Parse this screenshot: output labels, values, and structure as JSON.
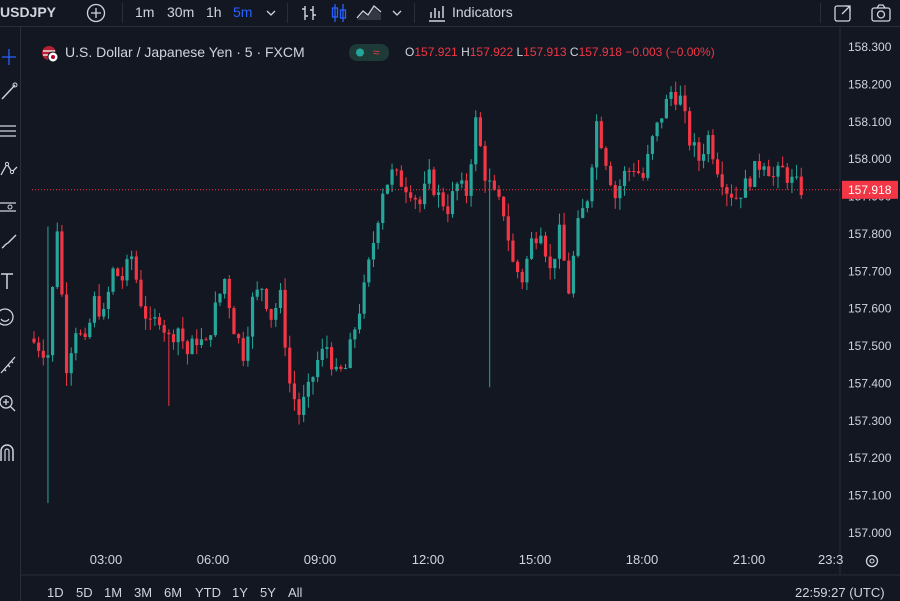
{
  "toolbar": {
    "symbol": "USDJPY",
    "intervals": [
      "1m",
      "30m",
      "1h",
      "5m"
    ],
    "active_interval": "5m",
    "indicators_label": "Indicators"
  },
  "legend": {
    "title": "U.S. Dollar / Japanese Yen · 5 · FXCM",
    "open_label": "O",
    "open": "157.921",
    "high_label": "H",
    "high": "157.922",
    "low_label": "L",
    "low": "157.913",
    "close_label": "C",
    "close": "157.918",
    "change": "−0.003 (−0.00%)"
  },
  "range_buttons": [
    "1D",
    "5D",
    "1M",
    "3M",
    "6M",
    "YTD",
    "1Y",
    "5Y",
    "All"
  ],
  "clock": "22:59:27 (UTC)",
  "colors": {
    "up": "#26a69a",
    "down": "#f23645",
    "price_line": "#f23645",
    "background": "#131722"
  },
  "chart_data": {
    "type": "candlestick",
    "ylim": [
      156.98,
      158.33
    ],
    "yticks": [
      "158.300",
      "158.200",
      "158.100",
      "158.000",
      "157.900",
      "157.800",
      "157.700",
      "157.600",
      "157.500",
      "157.400",
      "157.300",
      "157.200",
      "157.100",
      "157.000"
    ],
    "xticks": [
      "03:00",
      "06:00",
      "09:00",
      "12:00",
      "15:00",
      "18:00",
      "21:00",
      "23:3"
    ],
    "last_price": "157.918",
    "close_path": [
      [
        0,
        157.52
      ],
      [
        2,
        157.5
      ],
      [
        4,
        157.48
      ],
      [
        6,
        157.82
      ],
      [
        8,
        157.45
      ],
      [
        10,
        157.55
      ],
      [
        12,
        157.5
      ],
      [
        14,
        157.62
      ],
      [
        16,
        157.58
      ],
      [
        18,
        157.7
      ],
      [
        20,
        157.68
      ],
      [
        22,
        157.74
      ],
      [
        24,
        157.62
      ],
      [
        26,
        157.55
      ],
      [
        28,
        157.58
      ],
      [
        30,
        157.52
      ],
      [
        32,
        157.55
      ],
      [
        34,
        157.48
      ],
      [
        36,
        157.52
      ],
      [
        38,
        157.5
      ],
      [
        40,
        157.6
      ],
      [
        42,
        157.68
      ],
      [
        44,
        157.55
      ],
      [
        46,
        157.48
      ],
      [
        48,
        157.62
      ],
      [
        50,
        157.66
      ],
      [
        52,
        157.58
      ],
      [
        54,
        157.63
      ],
      [
        56,
        157.4
      ],
      [
        58,
        157.32
      ],
      [
        60,
        157.38
      ],
      [
        62,
        157.46
      ],
      [
        64,
        157.5
      ],
      [
        66,
        157.42
      ],
      [
        68,
        157.44
      ],
      [
        70,
        157.55
      ],
      [
        72,
        157.65
      ],
      [
        74,
        157.78
      ],
      [
        76,
        157.92
      ],
      [
        78,
        157.96
      ],
      [
        80,
        157.94
      ],
      [
        82,
        157.92
      ],
      [
        84,
        157.88
      ],
      [
        86,
        157.95
      ],
      [
        88,
        157.9
      ],
      [
        90,
        157.87
      ],
      [
        92,
        157.93
      ],
      [
        94,
        157.91
      ],
      [
        96,
        158.1
      ],
      [
        98,
        157.96
      ],
      [
        100,
        157.9
      ],
      [
        102,
        157.86
      ],
      [
        104,
        157.72
      ],
      [
        106,
        157.68
      ],
      [
        108,
        157.78
      ],
      [
        110,
        157.82
      ],
      [
        112,
        157.7
      ],
      [
        114,
        157.8
      ],
      [
        116,
        157.65
      ],
      [
        118,
        157.82
      ],
      [
        120,
        157.9
      ],
      [
        122,
        158.1
      ],
      [
        124,
        158.0
      ],
      [
        126,
        157.9
      ],
      [
        128,
        157.96
      ],
      [
        130,
        157.98
      ],
      [
        132,
        157.95
      ],
      [
        134,
        158.05
      ],
      [
        136,
        158.12
      ],
      [
        138,
        158.18
      ],
      [
        140,
        158.16
      ],
      [
        142,
        158.05
      ],
      [
        144,
        158.0
      ],
      [
        146,
        158.06
      ],
      [
        148,
        157.98
      ],
      [
        150,
        157.92
      ],
      [
        152,
        157.9
      ],
      [
        154,
        157.93
      ],
      [
        156,
        157.97
      ],
      [
        158,
        158.0
      ],
      [
        160,
        157.95
      ],
      [
        162,
        157.97
      ],
      [
        164,
        157.94
      ],
      [
        166,
        157.92
      ]
    ]
  }
}
